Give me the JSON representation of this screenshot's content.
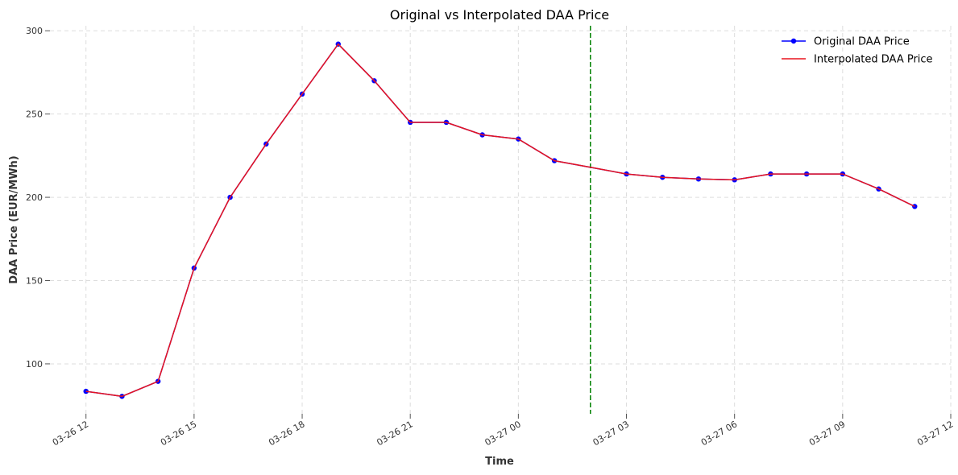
{
  "chart_data": {
    "type": "line",
    "title": "Original vs Interpolated DAA Price",
    "xlabel": "Time",
    "ylabel": "DAA Price (EUR/MWh)",
    "x_unit": "hour",
    "xlim": [
      "2024-03-26 11:00",
      "2024-03-27 12:00"
    ],
    "ylim": [
      70,
      303
    ],
    "y_ticks": [
      100,
      150,
      200,
      250,
      300
    ],
    "x_ticks": [
      "03-26 12",
      "03-26 15",
      "03-26 18",
      "03-26 21",
      "03-27 00",
      "03-27 03",
      "03-27 06",
      "03-27 09",
      "03-27 12"
    ],
    "x_tick_times": [
      "2024-03-26 12:00",
      "2024-03-26 15:00",
      "2024-03-26 18:00",
      "2024-03-26 21:00",
      "2024-03-27 00:00",
      "2024-03-27 03:00",
      "2024-03-27 06:00",
      "2024-03-27 09:00",
      "2024-03-27 12:00"
    ],
    "grid": true,
    "legend_position": "top-right",
    "vline": {
      "x": "2024-03-27 02:00",
      "color": "#008000",
      "style": "dashed"
    },
    "series": [
      {
        "name": "Original DAA Price",
        "color": "#0000ff",
        "marker": "circle",
        "x": [
          "2024-03-26 12:00",
          "2024-03-26 13:00",
          "2024-03-26 14:00",
          "2024-03-26 15:00",
          "2024-03-26 16:00",
          "2024-03-26 17:00",
          "2024-03-26 18:00",
          "2024-03-26 19:00",
          "2024-03-26 20:00",
          "2024-03-26 21:00",
          "2024-03-26 22:00",
          "2024-03-26 23:00",
          "2024-03-27 00:00",
          "2024-03-27 01:00",
          "2024-03-27 03:00",
          "2024-03-27 04:00",
          "2024-03-27 05:00",
          "2024-03-27 06:00",
          "2024-03-27 07:00",
          "2024-03-27 08:00",
          "2024-03-27 09:00",
          "2024-03-27 10:00",
          "2024-03-27 11:00"
        ],
        "values": [
          83.5,
          80.5,
          89.5,
          157.5,
          200,
          232,
          262,
          292,
          270,
          245,
          245,
          237.5,
          235,
          222,
          214,
          212,
          211,
          210.5,
          214,
          214,
          214,
          205,
          194.5
        ]
      },
      {
        "name": "Interpolated DAA Price",
        "color": "#e8141e",
        "marker": "none",
        "x": [
          "2024-03-26 12:00",
          "2024-03-26 13:00",
          "2024-03-26 14:00",
          "2024-03-26 15:00",
          "2024-03-26 16:00",
          "2024-03-26 17:00",
          "2024-03-26 18:00",
          "2024-03-26 19:00",
          "2024-03-26 20:00",
          "2024-03-26 21:00",
          "2024-03-26 22:00",
          "2024-03-26 23:00",
          "2024-03-27 00:00",
          "2024-03-27 01:00",
          "2024-03-27 02:00",
          "2024-03-27 03:00",
          "2024-03-27 04:00",
          "2024-03-27 05:00",
          "2024-03-27 06:00",
          "2024-03-27 07:00",
          "2024-03-27 08:00",
          "2024-03-27 09:00",
          "2024-03-27 10:00",
          "2024-03-27 11:00"
        ],
        "values": [
          83.5,
          80.5,
          89.5,
          157.5,
          200,
          232,
          262,
          292,
          270,
          245,
          245,
          237.5,
          235,
          222,
          218,
          214,
          212,
          211,
          210.5,
          214,
          214,
          214,
          205,
          194.5
        ]
      }
    ]
  }
}
